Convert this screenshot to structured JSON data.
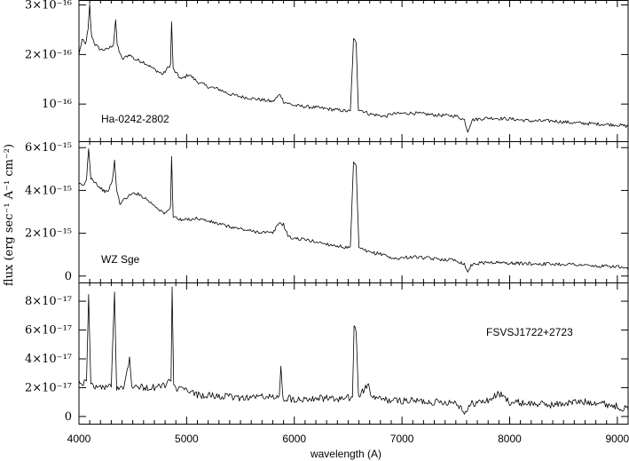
{
  "chart_data": {
    "type": "line",
    "xlabel": "wavelength (A)",
    "ylabel": "flux (erg sec⁻¹ A⁻¹ cm⁻²)",
    "xlim": [
      4000,
      9100
    ],
    "xticks": [
      4000,
      5000,
      6000,
      7000,
      8000,
      9000
    ],
    "panels": [
      {
        "name": "Ha-0242-2802",
        "ylim": [
          2.5e-17,
          3.1e-16
        ],
        "yticks": [
          {
            "value": 1e-16,
            "label": "10⁻¹⁶"
          },
          {
            "value": 2e-16,
            "label": "2×10⁻¹⁶"
          },
          {
            "value": 3e-16,
            "label": "3×10⁻¹⁶"
          }
        ],
        "points": [
          [
            4000,
            2e-16
          ],
          [
            4030,
            2.3e-16
          ],
          [
            4060,
            2.2e-16
          ],
          [
            4085,
            2.5e-16
          ],
          [
            4100,
            3e-16
          ],
          [
            4115,
            2.4e-16
          ],
          [
            4150,
            2.2e-16
          ],
          [
            4200,
            2.1e-16
          ],
          [
            4260,
            2.1e-16
          ],
          [
            4320,
            2.2e-16
          ],
          [
            4340,
            2.7e-16
          ],
          [
            4355,
            2.2e-16
          ],
          [
            4400,
            1.9e-16
          ],
          [
            4470,
            2e-16
          ],
          [
            4520,
            1.9e-16
          ],
          [
            4600,
            1.85e-16
          ],
          [
            4700,
            1.7e-16
          ],
          [
            4780,
            1.6e-16
          ],
          [
            4850,
            1.8e-16
          ],
          [
            4860,
            2.65e-16
          ],
          [
            4875,
            1.7e-16
          ],
          [
            4950,
            1.5e-16
          ],
          [
            5020,
            1.6e-16
          ],
          [
            5100,
            1.45e-16
          ],
          [
            5200,
            1.35e-16
          ],
          [
            5300,
            1.3e-16
          ],
          [
            5400,
            1.2e-16
          ],
          [
            5500,
            1.15e-16
          ],
          [
            5650,
            1.1e-16
          ],
          [
            5800,
            1.05e-16
          ],
          [
            5870,
            1.2e-16
          ],
          [
            5900,
            1.05e-16
          ],
          [
            6000,
            9.7e-17
          ],
          [
            6200,
            9.3e-17
          ],
          [
            6400,
            8.8e-17
          ],
          [
            6520,
            8.5e-17
          ],
          [
            6550,
            2.3e-16
          ],
          [
            6575,
            2.25e-16
          ],
          [
            6595,
            9e-17
          ],
          [
            6700,
            8e-17
          ],
          [
            6850,
            7.5e-17
          ],
          [
            6900,
            8e-17
          ],
          [
            7100,
            8.2e-17
          ],
          [
            7300,
            7.8e-17
          ],
          [
            7500,
            7.6e-17
          ],
          [
            7580,
            6.8e-17
          ],
          [
            7610,
            4.5e-17
          ],
          [
            7650,
            6.8e-17
          ],
          [
            7800,
            7.2e-17
          ],
          [
            8000,
            7e-17
          ],
          [
            8200,
            6.6e-17
          ],
          [
            8400,
            6.6e-17
          ],
          [
            8600,
            6.2e-17
          ],
          [
            8800,
            6e-17
          ],
          [
            9000,
            5.8e-17
          ],
          [
            9100,
            5.5e-17
          ]
        ]
      },
      {
        "name": "WZ Sge",
        "ylim": [
          -3e-16,
          6.3e-15
        ],
        "yticks": [
          {
            "value": 0,
            "label": "0"
          },
          {
            "value": 2e-15,
            "label": "2×10⁻¹⁵"
          },
          {
            "value": 4e-15,
            "label": "4×10⁻¹⁵"
          },
          {
            "value": 6e-15,
            "label": "6×10⁻¹⁵"
          }
        ],
        "points": [
          [
            4000,
            4.3e-15
          ],
          [
            4040,
            4.2e-15
          ],
          [
            4070,
            4.5e-15
          ],
          [
            4090,
            6e-15
          ],
          [
            4110,
            4.6e-15
          ],
          [
            4150,
            4.4e-15
          ],
          [
            4200,
            4.1e-15
          ],
          [
            4260,
            3.9e-15
          ],
          [
            4310,
            4.4e-15
          ],
          [
            4330,
            5.4e-15
          ],
          [
            4350,
            4e-15
          ],
          [
            4380,
            3.4e-15
          ],
          [
            4450,
            3.7e-15
          ],
          [
            4520,
            3.9e-15
          ],
          [
            4600,
            3.7e-15
          ],
          [
            4700,
            3.3e-15
          ],
          [
            4800,
            2.9e-15
          ],
          [
            4850,
            3.2e-15
          ],
          [
            4860,
            5.6e-15
          ],
          [
            4875,
            2.8e-15
          ],
          [
            4950,
            2.6e-15
          ],
          [
            5100,
            2.7e-15
          ],
          [
            5250,
            2.5e-15
          ],
          [
            5400,
            2.3e-15
          ],
          [
            5600,
            2.1e-15
          ],
          [
            5800,
            2e-15
          ],
          [
            5860,
            2.5e-15
          ],
          [
            5900,
            2.4e-15
          ],
          [
            5950,
            1.8e-15
          ],
          [
            6100,
            1.7e-15
          ],
          [
            6300,
            1.5e-15
          ],
          [
            6520,
            1.3e-15
          ],
          [
            6550,
            5.3e-15
          ],
          [
            6575,
            5.1e-15
          ],
          [
            6600,
            1.3e-15
          ],
          [
            6700,
            1.1e-15
          ],
          [
            6850,
            1e-15
          ],
          [
            6900,
            8e-16
          ],
          [
            7100,
            9e-16
          ],
          [
            7300,
            8e-16
          ],
          [
            7500,
            7.5e-16
          ],
          [
            7580,
            5.5e-16
          ],
          [
            7610,
            2e-16
          ],
          [
            7650,
            5.5e-16
          ],
          [
            7800,
            6.5e-16
          ],
          [
            8000,
            6e-16
          ],
          [
            8200,
            5.8e-16
          ],
          [
            8400,
            5.6e-16
          ],
          [
            8600,
            5.5e-16
          ],
          [
            8800,
            4.5e-16
          ],
          [
            9000,
            4.5e-16
          ],
          [
            9100,
            3e-16
          ]
        ]
      },
      {
        "name": "FSVSJ1722+2723",
        "ylim": [
          -5e-18,
          9.3e-17
        ],
        "yticks": [
          {
            "value": 0,
            "label": "0"
          },
          {
            "value": 2e-17,
            "label": "2×10⁻¹⁷"
          },
          {
            "value": 4e-17,
            "label": "4×10⁻¹⁷"
          },
          {
            "value": 6e-17,
            "label": "6×10⁻¹⁷"
          },
          {
            "value": 8e-17,
            "label": "8×10⁻¹⁷"
          }
        ],
        "points": [
          [
            4000,
            2.5e-17
          ],
          [
            4040,
            2.3e-17
          ],
          [
            4070,
            2.6e-17
          ],
          [
            4090,
            8.3e-17
          ],
          [
            4110,
            2.2e-17
          ],
          [
            4200,
            2e-17
          ],
          [
            4300,
            2.1e-17
          ],
          [
            4330,
            8.5e-17
          ],
          [
            4350,
            2e-17
          ],
          [
            4420,
            2.1e-17
          ],
          [
            4470,
            4.1e-17
          ],
          [
            4490,
            2.2e-17
          ],
          [
            4600,
            2e-17
          ],
          [
            4700,
            2e-17
          ],
          [
            4800,
            2.2e-17
          ],
          [
            4855,
            2.5e-17
          ],
          [
            4865,
            8.9e-17
          ],
          [
            4880,
            2e-17
          ],
          [
            5000,
            1.8e-17
          ],
          [
            5100,
            1.5e-17
          ],
          [
            5300,
            1.4e-17
          ],
          [
            5500,
            1.3e-17
          ],
          [
            5700,
            1.4e-17
          ],
          [
            5860,
            1.3e-17
          ],
          [
            5875,
            3.3e-17
          ],
          [
            5895,
            1.3e-17
          ],
          [
            6000,
            1.2e-17
          ],
          [
            6200,
            1.3e-17
          ],
          [
            6400,
            1.2e-17
          ],
          [
            6540,
            1.3e-17
          ],
          [
            6555,
            6.3e-17
          ],
          [
            6575,
            6e-17
          ],
          [
            6595,
            1.4e-17
          ],
          [
            6690,
            2.2e-17
          ],
          [
            6720,
            1.3e-17
          ],
          [
            6900,
            1.1e-17
          ],
          [
            7100,
            1.1e-17
          ],
          [
            7300,
            1e-17
          ],
          [
            7500,
            1e-17
          ],
          [
            7590,
            3e-18
          ],
          [
            7650,
            9e-18
          ],
          [
            7800,
            1.1e-17
          ],
          [
            7900,
            1.6e-17
          ],
          [
            8000,
            1e-17
          ],
          [
            8200,
            9e-18
          ],
          [
            8400,
            8e-18
          ],
          [
            8600,
            1e-17
          ],
          [
            8800,
            1e-17
          ],
          [
            9000,
            7e-18
          ],
          [
            9100,
            5e-18
          ]
        ]
      }
    ]
  },
  "labels": {
    "panel1": "Ha-0242-2802",
    "panel2": "WZ Sge",
    "panel3": "FSVSJ1722+2723",
    "xlabel": "wavelength (A)",
    "ylabel": "flux (erg sec⁻¹ A⁻¹ cm⁻²)"
  }
}
